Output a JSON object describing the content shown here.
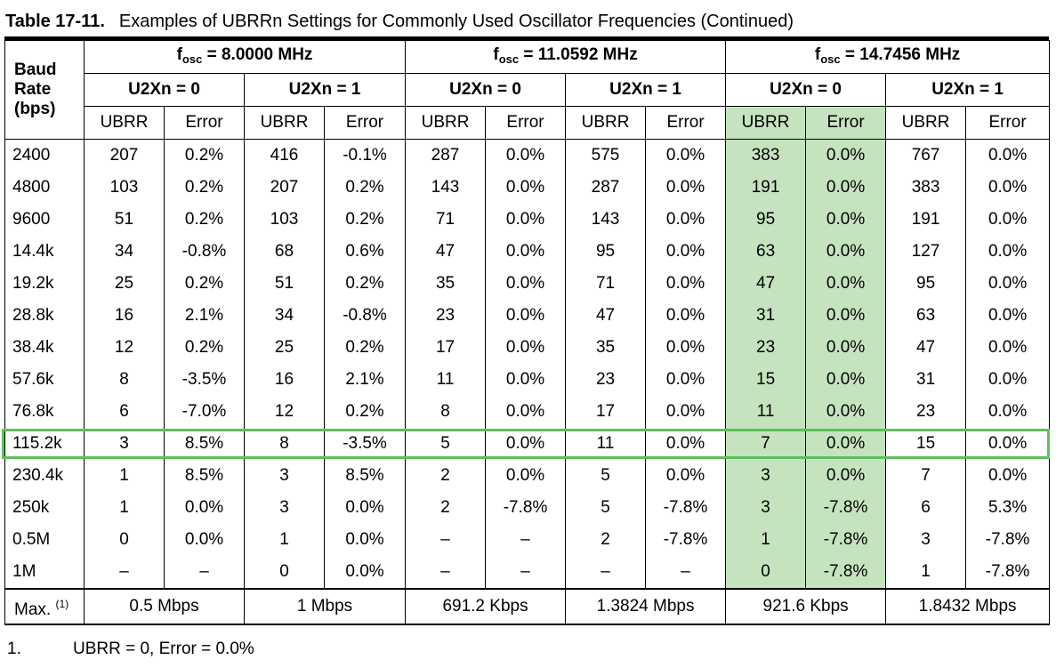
{
  "caption": {
    "number": "Table 17-11.",
    "title": "Examples of UBRRn Settings for Commonly Used Oscillator Frequencies (Continued)"
  },
  "header": {
    "baud_rate": "Baud Rate (bps)",
    "freqs": [
      {
        "prefix": "f",
        "sub": "osc",
        "value": "= 8.0000 MHz"
      },
      {
        "prefix": "f",
        "sub": "osc",
        "value": "= 11.0592 MHz"
      },
      {
        "prefix": "f",
        "sub": "osc",
        "value": "= 14.7456 MHz"
      }
    ],
    "modes": [
      "U2Xn = 0",
      "U2Xn = 1",
      "U2Xn = 0",
      "U2Xn = 1",
      "U2Xn = 0",
      "U2Xn = 1"
    ],
    "cols": [
      "UBRR",
      "Error"
    ]
  },
  "rows": [
    {
      "rate": "2400",
      "cells": [
        "207",
        "0.2%",
        "416",
        "-0.1%",
        "287",
        "0.0%",
        "575",
        "0.0%",
        "383",
        "0.0%",
        "767",
        "0.0%"
      ]
    },
    {
      "rate": "4800",
      "cells": [
        "103",
        "0.2%",
        "207",
        "0.2%",
        "143",
        "0.0%",
        "287",
        "0.0%",
        "191",
        "0.0%",
        "383",
        "0.0%"
      ]
    },
    {
      "rate": "9600",
      "cells": [
        "51",
        "0.2%",
        "103",
        "0.2%",
        "71",
        "0.0%",
        "143",
        "0.0%",
        "95",
        "0.0%",
        "191",
        "0.0%"
      ]
    },
    {
      "rate": "14.4k",
      "cells": [
        "34",
        "-0.8%",
        "68",
        "0.6%",
        "47",
        "0.0%",
        "95",
        "0.0%",
        "63",
        "0.0%",
        "127",
        "0.0%"
      ]
    },
    {
      "rate": "19.2k",
      "cells": [
        "25",
        "0.2%",
        "51",
        "0.2%",
        "35",
        "0.0%",
        "71",
        "0.0%",
        "47",
        "0.0%",
        "95",
        "0.0%"
      ]
    },
    {
      "rate": "28.8k",
      "cells": [
        "16",
        "2.1%",
        "34",
        "-0.8%",
        "23",
        "0.0%",
        "47",
        "0.0%",
        "31",
        "0.0%",
        "63",
        "0.0%"
      ]
    },
    {
      "rate": "38.4k",
      "cells": [
        "12",
        "0.2%",
        "25",
        "0.2%",
        "17",
        "0.0%",
        "35",
        "0.0%",
        "23",
        "0.0%",
        "47",
        "0.0%"
      ]
    },
    {
      "rate": "57.6k",
      "cells": [
        "8",
        "-3.5%",
        "16",
        "2.1%",
        "11",
        "0.0%",
        "23",
        "0.0%",
        "15",
        "0.0%",
        "31",
        "0.0%"
      ]
    },
    {
      "rate": "76.8k",
      "cells": [
        "6",
        "-7.0%",
        "12",
        "0.2%",
        "8",
        "0.0%",
        "17",
        "0.0%",
        "11",
        "0.0%",
        "23",
        "0.0%"
      ]
    },
    {
      "rate": "115.2k",
      "cells": [
        "3",
        "8.5%",
        "8",
        "-3.5%",
        "5",
        "0.0%",
        "11",
        "0.0%",
        "7",
        "0.0%",
        "15",
        "0.0%"
      ]
    },
    {
      "rate": "230.4k",
      "cells": [
        "1",
        "8.5%",
        "3",
        "8.5%",
        "2",
        "0.0%",
        "5",
        "0.0%",
        "3",
        "0.0%",
        "7",
        "0.0%"
      ]
    },
    {
      "rate": "250k",
      "cells": [
        "1",
        "0.0%",
        "3",
        "0.0%",
        "2",
        "-7.8%",
        "5",
        "-7.8%",
        "3",
        "-7.8%",
        "6",
        "5.3%"
      ]
    },
    {
      "rate": "0.5M",
      "cells": [
        "0",
        "0.0%",
        "1",
        "0.0%",
        "–",
        "–",
        "2",
        "-7.8%",
        "1",
        "-7.8%",
        "3",
        "-7.8%"
      ]
    },
    {
      "rate": "1M",
      "cells": [
        "–",
        "–",
        "0",
        "0.0%",
        "–",
        "–",
        "–",
        "–",
        "0",
        "-7.8%",
        "1",
        "-7.8%"
      ]
    }
  ],
  "max_row": {
    "label": "Max.",
    "ref": "(1)",
    "values": [
      "0.5 Mbps",
      "1 Mbps",
      "691.2 Kbps",
      "1.3824 Mbps",
      "921.6 Kbps",
      "1.8432 Mbps"
    ]
  },
  "footnote": {
    "number": "1.",
    "text": "UBRR = 0, Error = 0.0%"
  },
  "highlight": {
    "column_color": "#c6e3c0",
    "row_border_color": "#5fbf5a",
    "highlighted_row": "115.2k"
  }
}
